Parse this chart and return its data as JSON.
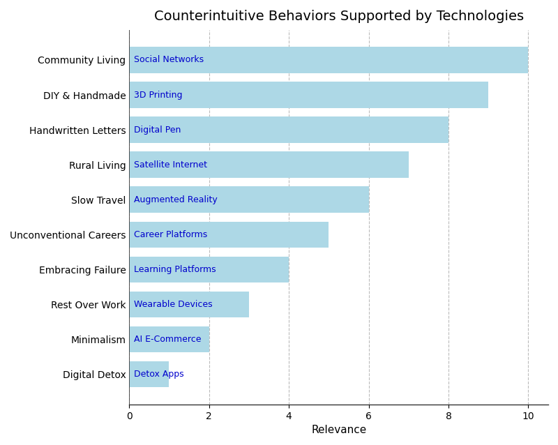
{
  "title": "Counterintuitive Behaviors Supported by Technologies",
  "xlabel": "Relevance",
  "categories": [
    "Digital Detox",
    "Minimalism",
    "Rest Over Work",
    "Embracing Failure",
    "Unconventional Careers",
    "Slow Travel",
    "Rural Living",
    "Handwritten Letters",
    "DIY & Handmade",
    "Community Living"
  ],
  "values": [
    1,
    2,
    3,
    4,
    5,
    6,
    7,
    8,
    9,
    10
  ],
  "labels": [
    "Detox Apps",
    "AI E-Commerce",
    "Wearable Devices",
    "Learning Platforms",
    "Career Platforms",
    "Augmented Reality",
    "Satellite Internet",
    "Digital Pen",
    "3D Printing",
    "Social Networks"
  ],
  "bar_color": "#add8e6",
  "label_color": "#0000cc",
  "bar_edgecolor": "none",
  "xlim": [
    0,
    10.5
  ],
  "xticks": [
    0,
    2,
    4,
    6,
    8,
    10
  ],
  "title_fontsize": 14,
  "label_fontsize": 9,
  "axis_label_fontsize": 11,
  "tick_fontsize": 10,
  "category_fontsize": 10,
  "background_color": "#ffffff",
  "grid_color": "#aaaaaa",
  "bar_height": 0.75
}
